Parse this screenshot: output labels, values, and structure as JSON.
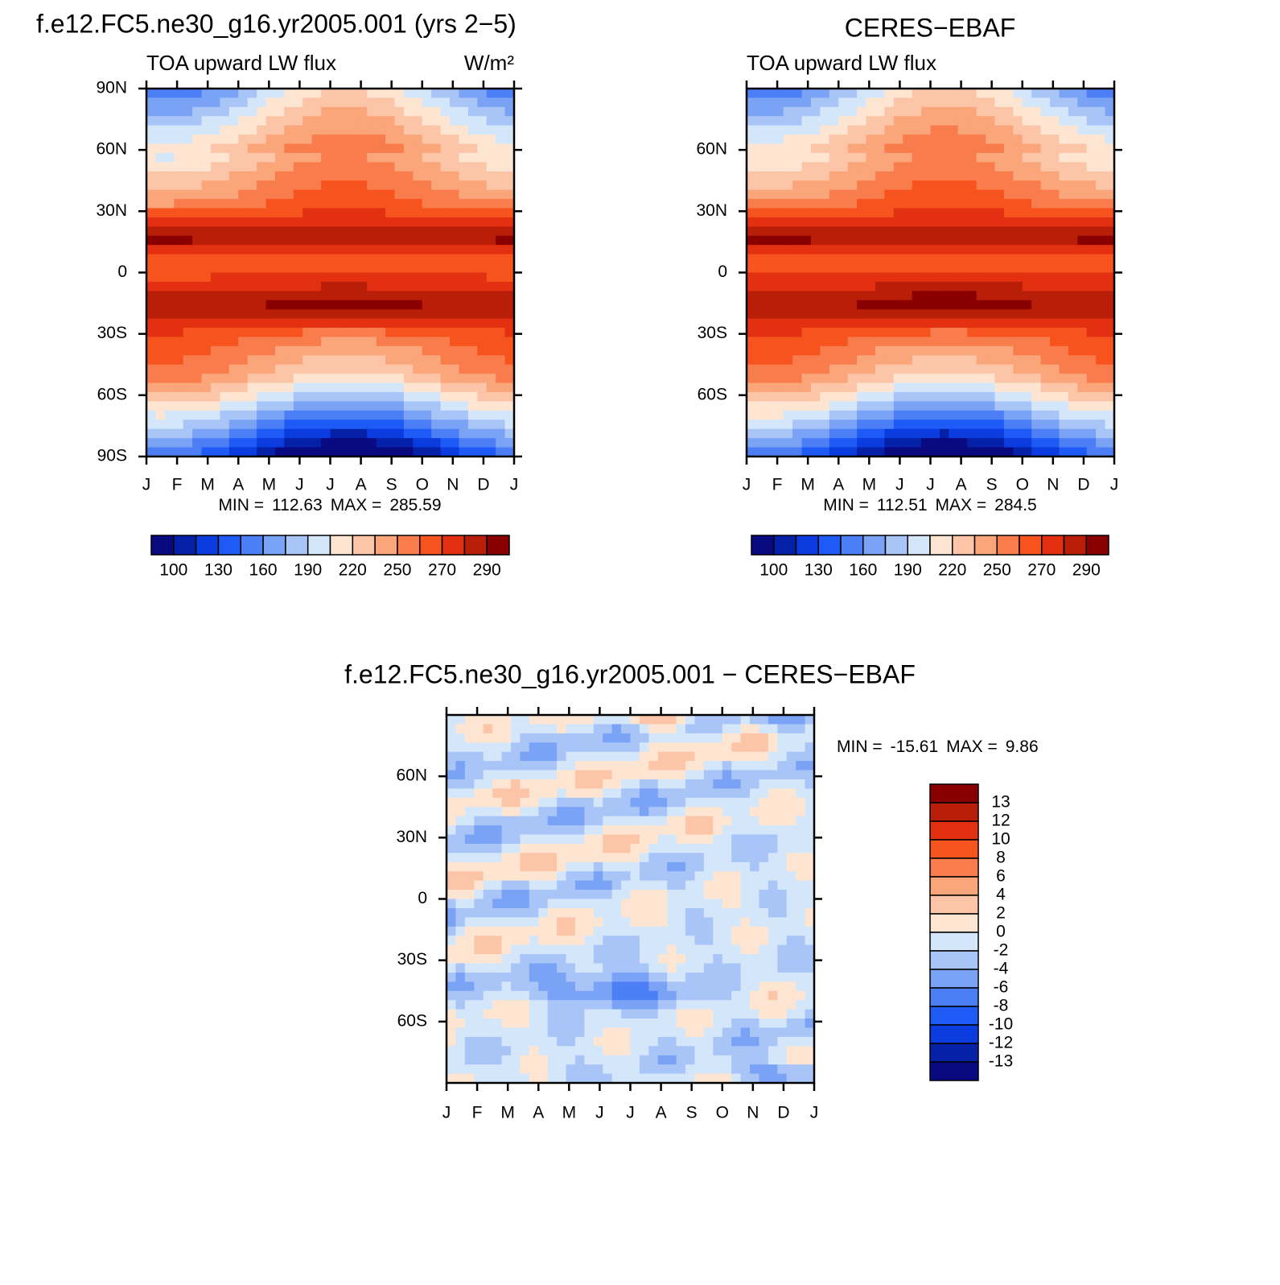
{
  "chart_data": [
    {
      "type": "contour",
      "title": "f.e12.FC5.ne30_g16.yr2005.001 (yrs 2−5)",
      "left_label": "TOA upward LW flux",
      "right_label": "W/m²",
      "categories": [
        "J",
        "F",
        "M",
        "A",
        "M",
        "J",
        "J",
        "A",
        "S",
        "O",
        "N",
        "D",
        "J"
      ],
      "ylim": [
        -90,
        90
      ],
      "yticks": [
        {
          "value": 90,
          "label": "90N"
        },
        {
          "value": 60,
          "label": "60N"
        },
        {
          "value": 30,
          "label": "30N"
        },
        0,
        {
          "value": -30,
          "label": "30S"
        },
        {
          "value": -60,
          "label": "60S"
        },
        {
          "value": -90,
          "label": "90S"
        }
      ],
      "min_label": "MIN =",
      "min": 112.63,
      "max_label": "MAX =",
      "max": 285.59,
      "colorbar": {
        "labels": [
          100,
          130,
          160,
          190,
          220,
          250,
          270,
          290
        ],
        "colors": [
          "#0a0a80",
          "#0521a8",
          "#0a3ce0",
          "#1e5af5",
          "#4c7ff5",
          "#7aa3f5",
          "#a9c5f8",
          "#d4e6fa",
          "#fde5d2",
          "#fcc5a8",
          "#fba57a",
          "#f97d4c",
          "#f7531e",
          "#e23010",
          "#b81e08",
          "#8a0000"
        ]
      }
    },
    {
      "type": "contour",
      "title": "CERES−EBAF",
      "left_label": "TOA upward LW flux",
      "categories": [
        "J",
        "F",
        "M",
        "A",
        "M",
        "J",
        "J",
        "A",
        "S",
        "O",
        "N",
        "D",
        "J"
      ],
      "ylim": [
        -90,
        90
      ],
      "yticks": [
        {
          "value": 60,
          "label": "60N"
        },
        {
          "value": 30,
          "label": "30N"
        },
        0,
        {
          "value": -30,
          "label": "30S"
        },
        {
          "value": -60,
          "label": "60S"
        }
      ],
      "min_label": "MIN =",
      "min": 112.51,
      "max_label": "MAX =",
      "max": 284.5,
      "colorbar": {
        "labels": [
          100,
          130,
          160,
          190,
          220,
          250,
          270,
          290
        ],
        "colors": [
          "#0a0a80",
          "#0521a8",
          "#0a3ce0",
          "#1e5af5",
          "#4c7ff5",
          "#7aa3f5",
          "#a9c5f8",
          "#d4e6fa",
          "#fde5d2",
          "#fcc5a8",
          "#fba57a",
          "#f97d4c",
          "#f7531e",
          "#e23010",
          "#b81e08",
          "#8a0000"
        ]
      }
    },
    {
      "type": "contour",
      "title": "f.e12.FC5.ne30_g16.yr2005.001 − CERES−EBAF",
      "categories": [
        "J",
        "F",
        "M",
        "A",
        "M",
        "J",
        "J",
        "A",
        "S",
        "O",
        "N",
        "D",
        "J"
      ],
      "ylim": [
        -90,
        90
      ],
      "yticks": [
        {
          "value": 60,
          "label": "60N"
        },
        {
          "value": 30,
          "label": "30N"
        },
        0,
        {
          "value": -30,
          "label": "30S"
        },
        {
          "value": -60,
          "label": "60S"
        }
      ],
      "min_label": "MIN =",
      "min": -15.61,
      "max_label": "MAX =",
      "max": 9.86,
      "colorbar": {
        "labels": [
          13,
          12,
          10,
          8,
          6,
          4,
          2,
          0,
          -2,
          -4,
          -6,
          -8,
          -10,
          -12,
          -13
        ],
        "colors": [
          "#8a0000",
          "#b81e08",
          "#e23010",
          "#f7531e",
          "#f97d4c",
          "#fba57a",
          "#fcc5a8",
          "#fde5d2",
          "#d4e6fa",
          "#a9c5f8",
          "#7aa3f5",
          "#4c7ff5",
          "#1e5af5",
          "#0a3ce0",
          "#0521a8",
          "#0a0a80"
        ]
      }
    }
  ]
}
